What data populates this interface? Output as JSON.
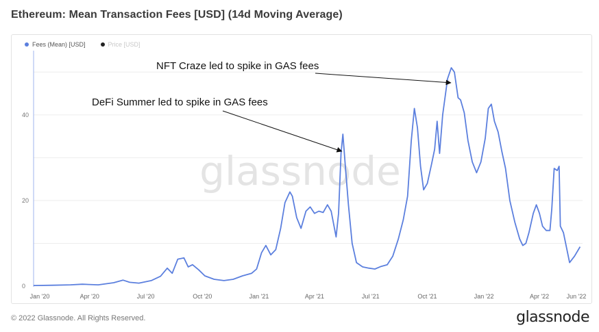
{
  "header": {
    "title": "Ethereum: Mean Transaction Fees [USD] (14d Moving Average)"
  },
  "legend": {
    "items": [
      {
        "label": "Fees (Mean) [USD]",
        "color": "#5b7fde",
        "active": true
      },
      {
        "label": "Price [USD]",
        "color": "#222222",
        "active": false
      }
    ]
  },
  "watermark": "glassnode",
  "footer": {
    "copyright": "© 2022 Glassnode. All Rights Reserved.",
    "brand": "glassnode"
  },
  "chart_data": {
    "type": "line",
    "title": "Ethereum: Mean Transaction Fees [USD] (14d Moving Average)",
    "xlabel": "",
    "ylabel": "",
    "x_tick_labels": [
      "Jan '20",
      "Apr '20",
      "Jul '20",
      "Oct '20",
      "Jan '21",
      "Apr '21",
      "Jul '21",
      "Oct '21",
      "Jan '22",
      "Apr '22",
      "Jun '22"
    ],
    "y_ticks": [
      0,
      20,
      40
    ],
    "ylim": [
      0,
      55
    ],
    "grid": true,
    "legend_position": "top-left",
    "series": [
      {
        "name": "Fees (Mean) [USD]",
        "color": "#5b7fde",
        "points": [
          [
            "2020-01-01",
            0.15
          ],
          [
            "2020-02-01",
            0.2
          ],
          [
            "2020-03-01",
            0.3
          ],
          [
            "2020-03-20",
            0.45
          ],
          [
            "2020-04-15",
            0.3
          ],
          [
            "2020-05-10",
            0.8
          ],
          [
            "2020-05-25",
            1.4
          ],
          [
            "2020-06-05",
            0.9
          ],
          [
            "2020-06-20",
            0.7
          ],
          [
            "2020-07-10",
            1.3
          ],
          [
            "2020-07-25",
            2.3
          ],
          [
            "2020-08-05",
            4.2
          ],
          [
            "2020-08-13",
            3.0
          ],
          [
            "2020-08-22",
            6.3
          ],
          [
            "2020-09-01",
            6.6
          ],
          [
            "2020-09-08",
            4.5
          ],
          [
            "2020-09-15",
            5.0
          ],
          [
            "2020-09-25",
            3.8
          ],
          [
            "2020-10-05",
            2.4
          ],
          [
            "2020-10-20",
            1.6
          ],
          [
            "2020-11-05",
            1.3
          ],
          [
            "2020-11-20",
            1.6
          ],
          [
            "2020-12-05",
            2.4
          ],
          [
            "2020-12-20",
            3.0
          ],
          [
            "2020-12-28",
            4.0
          ],
          [
            "2021-01-05",
            7.8
          ],
          [
            "2021-01-12",
            9.5
          ],
          [
            "2021-01-20",
            7.3
          ],
          [
            "2021-01-28",
            8.5
          ],
          [
            "2021-02-05",
            13.5
          ],
          [
            "2021-02-12",
            19.5
          ],
          [
            "2021-02-20",
            22.0
          ],
          [
            "2021-02-24",
            21.0
          ],
          [
            "2021-03-03",
            16.0
          ],
          [
            "2021-03-10",
            13.5
          ],
          [
            "2021-03-18",
            17.5
          ],
          [
            "2021-03-25",
            18.5
          ],
          [
            "2021-04-01",
            17.0
          ],
          [
            "2021-04-08",
            17.5
          ],
          [
            "2021-04-15",
            17.2
          ],
          [
            "2021-04-22",
            19.0
          ],
          [
            "2021-04-28",
            17.5
          ],
          [
            "2021-05-06",
            11.5
          ],
          [
            "2021-05-10",
            17.0
          ],
          [
            "2021-05-14",
            31.0
          ],
          [
            "2021-05-17",
            35.5
          ],
          [
            "2021-05-21",
            28.0
          ],
          [
            "2021-05-26",
            19.0
          ],
          [
            "2021-06-01",
            10.0
          ],
          [
            "2021-06-08",
            5.5
          ],
          [
            "2021-06-18",
            4.5
          ],
          [
            "2021-06-28",
            4.2
          ],
          [
            "2021-07-08",
            4.0
          ],
          [
            "2021-07-18",
            4.6
          ],
          [
            "2021-07-28",
            5.0
          ],
          [
            "2021-08-06",
            7.0
          ],
          [
            "2021-08-15",
            11.0
          ],
          [
            "2021-08-23",
            15.5
          ],
          [
            "2021-08-30",
            21.0
          ],
          [
            "2021-09-05",
            34.0
          ],
          [
            "2021-09-10",
            41.5
          ],
          [
            "2021-09-15",
            37.0
          ],
          [
            "2021-09-20",
            28.0
          ],
          [
            "2021-09-25",
            22.5
          ],
          [
            "2021-10-01",
            24.0
          ],
          [
            "2021-10-08",
            28.5
          ],
          [
            "2021-10-13",
            32.0
          ],
          [
            "2021-10-17",
            38.5
          ],
          [
            "2021-10-21",
            31.0
          ],
          [
            "2021-10-26",
            40.0
          ],
          [
            "2021-11-03",
            48.5
          ],
          [
            "2021-11-09",
            51.0
          ],
          [
            "2021-11-14",
            50.0
          ],
          [
            "2021-11-20",
            44.0
          ],
          [
            "2021-11-24",
            43.5
          ],
          [
            "2021-11-30",
            40.5
          ],
          [
            "2021-12-06",
            34.0
          ],
          [
            "2021-12-13",
            29.0
          ],
          [
            "2021-12-20",
            26.5
          ],
          [
            "2021-12-27",
            29.0
          ],
          [
            "2022-01-03",
            34.5
          ],
          [
            "2022-01-08",
            41.5
          ],
          [
            "2022-01-13",
            42.5
          ],
          [
            "2022-01-18",
            38.5
          ],
          [
            "2022-01-24",
            36.0
          ],
          [
            "2022-01-30",
            31.5
          ],
          [
            "2022-02-05",
            27.5
          ],
          [
            "2022-02-12",
            20.0
          ],
          [
            "2022-02-20",
            15.0
          ],
          [
            "2022-02-28",
            11.0
          ],
          [
            "2022-03-05",
            9.5
          ],
          [
            "2022-03-10",
            10.0
          ],
          [
            "2022-03-15",
            12.5
          ],
          [
            "2022-03-22",
            17.0
          ],
          [
            "2022-03-27",
            19.0
          ],
          [
            "2022-04-01",
            17.0
          ],
          [
            "2022-04-06",
            14.0
          ],
          [
            "2022-04-12",
            13.0
          ],
          [
            "2022-04-18",
            13.0
          ],
          [
            "2022-04-21",
            18.0
          ],
          [
            "2022-04-25",
            27.5
          ],
          [
            "2022-04-30",
            27.0
          ],
          [
            "2022-05-03",
            28.0
          ],
          [
            "2022-05-05",
            14.0
          ],
          [
            "2022-05-10",
            12.5
          ],
          [
            "2022-05-15",
            9.0
          ],
          [
            "2022-05-20",
            5.5
          ],
          [
            "2022-05-28",
            7.0
          ],
          [
            "2022-06-06",
            9.2
          ]
        ]
      }
    ],
    "annotations": [
      {
        "text": "NFT Craze led to spike in GAS fees",
        "target_date": "2021-11-08",
        "target_value": 47.5
      },
      {
        "text": "DeFi Summer led to spike in GAS fees",
        "target_date": "2021-05-15",
        "target_value": 31.5
      }
    ]
  }
}
